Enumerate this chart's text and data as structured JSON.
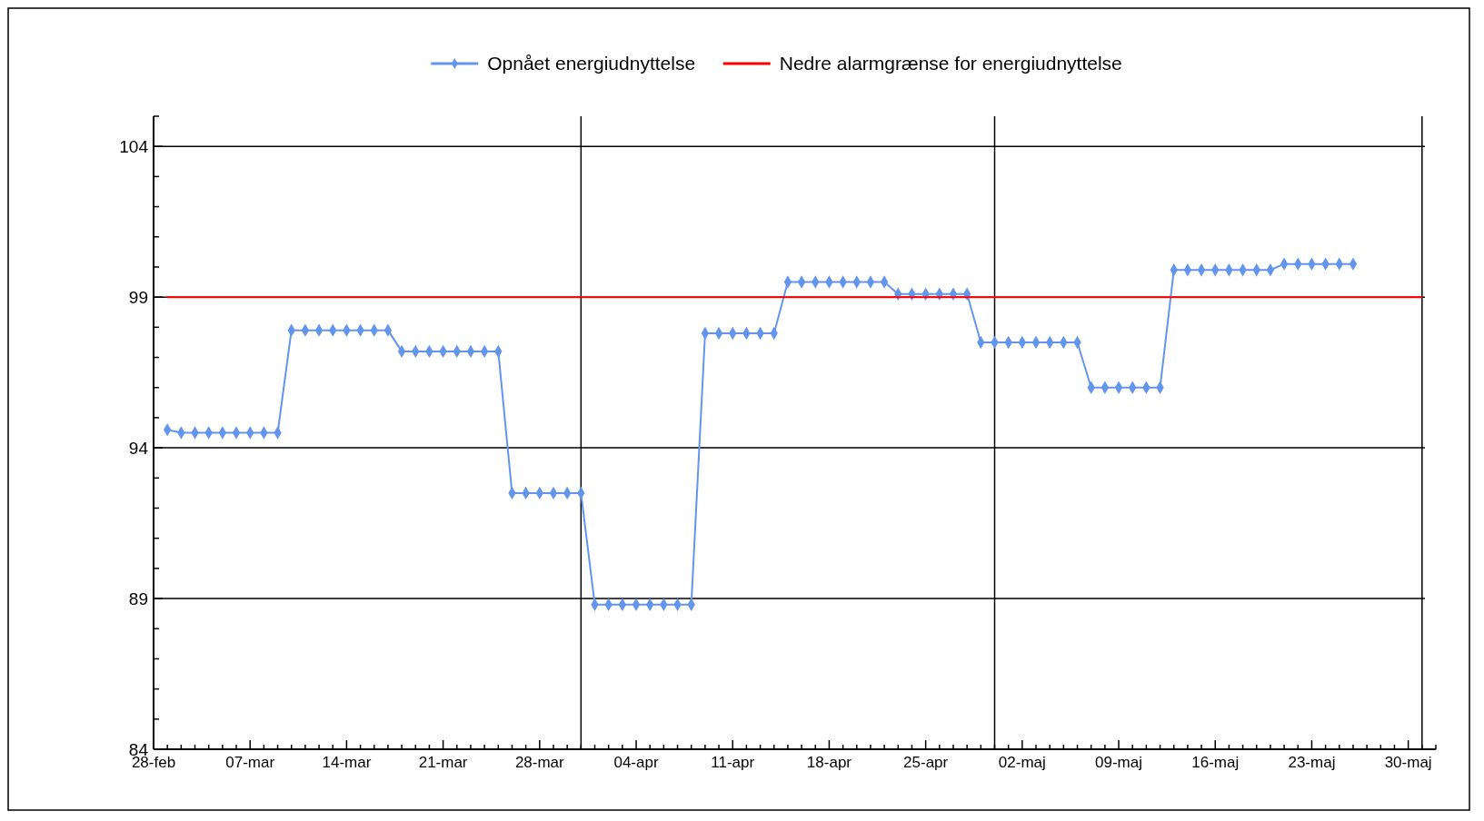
{
  "chart_data": {
    "type": "line",
    "x": [
      "--03-01",
      "--03-02",
      "--03-03",
      "--03-04",
      "--03-05",
      "--03-06",
      "--03-07",
      "--03-08",
      "--03-09",
      "--03-10",
      "--03-11",
      "--03-12",
      "--03-13",
      "--03-14",
      "--03-15",
      "--03-16",
      "--03-17",
      "--03-18",
      "--03-19",
      "--03-20",
      "--03-21",
      "--03-22",
      "--03-23",
      "--03-24",
      "--03-25",
      "--03-26",
      "--03-27",
      "--03-28",
      "--03-29",
      "--03-30",
      "--03-31",
      "--04-01",
      "--04-02",
      "--04-03",
      "--04-04",
      "--04-05",
      "--04-06",
      "--04-07",
      "--04-08",
      "--04-09",
      "--04-10",
      "--04-11",
      "--04-12",
      "--04-13",
      "--04-14",
      "--04-15",
      "--04-16",
      "--04-17",
      "--04-18",
      "--04-19",
      "--04-20",
      "--04-21",
      "--04-22",
      "--04-23",
      "--04-24",
      "--04-25",
      "--04-26",
      "--04-27",
      "--04-28",
      "--04-29",
      "--04-30",
      "--05-01",
      "--05-02",
      "--05-03",
      "--05-04",
      "--05-05",
      "--05-06",
      "--05-07",
      "--05-08",
      "--05-09",
      "--05-10",
      "--05-11",
      "--05-12",
      "--05-13",
      "--05-14",
      "--05-15",
      "--05-16",
      "--05-17",
      "--05-18",
      "--05-19",
      "--05-20",
      "--05-21",
      "--05-22",
      "--05-23",
      "--05-24",
      "--05-25",
      "--05-26"
    ],
    "series": [
      {
        "name": "Opnået energiudnyttelse",
        "color": "#6495ed",
        "marker": "diamond",
        "values": [
          94.6,
          94.5,
          94.5,
          94.5,
          94.5,
          94.5,
          94.5,
          94.5,
          94.5,
          97.9,
          97.9,
          97.9,
          97.9,
          97.9,
          97.9,
          97.9,
          97.9,
          97.2,
          97.2,
          97.2,
          97.2,
          97.2,
          97.2,
          97.2,
          97.2,
          92.5,
          92.5,
          92.5,
          92.5,
          92.5,
          92.5,
          88.8,
          88.8,
          88.8,
          88.8,
          88.8,
          88.8,
          88.8,
          88.8,
          97.8,
          97.8,
          97.8,
          97.8,
          97.8,
          97.8,
          99.5,
          99.5,
          99.5,
          99.5,
          99.5,
          99.5,
          99.5,
          99.5,
          99.1,
          99.1,
          99.1,
          99.1,
          99.1,
          99.1,
          97.5,
          97.5,
          97.5,
          97.5,
          97.5,
          97.5,
          97.5,
          97.5,
          96.0,
          96.0,
          96.0,
          96.0,
          96.0,
          96.0,
          99.9,
          99.9,
          99.9,
          99.9,
          99.9,
          99.9,
          99.9,
          99.9,
          100.1,
          100.1,
          100.1,
          100.1,
          100.1,
          100.1
        ]
      },
      {
        "name": "Nedre alarmgrænse for energiudnyttelse",
        "color": "#ff0000",
        "marker": "none",
        "x": [
          "--03-01",
          "--05-31"
        ],
        "values": [
          99,
          99
        ]
      }
    ],
    "xlim": [
      "--02-28",
      "--06-01"
    ],
    "xticks": [
      {
        "value": "--02-28",
        "label": "28-feb"
      },
      {
        "value": "--03-01",
        "label": null
      },
      {
        "value": "--03-02",
        "label": null
      },
      {
        "value": "--03-03",
        "label": null
      },
      {
        "value": "--03-04",
        "label": null
      },
      {
        "value": "--03-05",
        "label": null
      },
      {
        "value": "--03-06",
        "label": null
      },
      {
        "value": "--03-07",
        "label": "07-mar"
      },
      {
        "value": "--03-08",
        "label": null
      },
      {
        "value": "--03-09",
        "label": null
      },
      {
        "value": "--03-10",
        "label": null
      },
      {
        "value": "--03-11",
        "label": null
      },
      {
        "value": "--03-12",
        "label": null
      },
      {
        "value": "--03-13",
        "label": null
      },
      {
        "value": "--03-14",
        "label": "14-mar"
      },
      {
        "value": "--03-15",
        "label": null
      },
      {
        "value": "--03-16",
        "label": null
      },
      {
        "value": "--03-17",
        "label": null
      },
      {
        "value": "--03-18",
        "label": null
      },
      {
        "value": "--03-19",
        "label": null
      },
      {
        "value": "--03-20",
        "label": null
      },
      {
        "value": "--03-21",
        "label": "21-mar"
      },
      {
        "value": "--03-22",
        "label": null
      },
      {
        "value": "--03-23",
        "label": null
      },
      {
        "value": "--03-24",
        "label": null
      },
      {
        "value": "--03-25",
        "label": null
      },
      {
        "value": "--03-26",
        "label": null
      },
      {
        "value": "--03-27",
        "label": null
      },
      {
        "value": "--03-28",
        "label": "28-mar"
      },
      {
        "value": "--03-29",
        "label": null
      },
      {
        "value": "--03-30",
        "label": null
      },
      {
        "value": "--03-31",
        "label": null
      },
      {
        "value": "--04-01",
        "label": null
      },
      {
        "value": "--04-02",
        "label": null
      },
      {
        "value": "--04-03",
        "label": null
      },
      {
        "value": "--04-04",
        "label": "04-apr"
      },
      {
        "value": "--04-05",
        "label": null
      },
      {
        "value": "--04-06",
        "label": null
      },
      {
        "value": "--04-07",
        "label": null
      },
      {
        "value": "--04-08",
        "label": null
      },
      {
        "value": "--04-09",
        "label": null
      },
      {
        "value": "--04-10",
        "label": null
      },
      {
        "value": "--04-11",
        "label": "11-apr"
      },
      {
        "value": "--04-12",
        "label": null
      },
      {
        "value": "--04-13",
        "label": null
      },
      {
        "value": "--04-14",
        "label": null
      },
      {
        "value": "--04-15",
        "label": null
      },
      {
        "value": "--04-16",
        "label": null
      },
      {
        "value": "--04-17",
        "label": null
      },
      {
        "value": "--04-18",
        "label": "18-apr"
      },
      {
        "value": "--04-19",
        "label": null
      },
      {
        "value": "--04-20",
        "label": null
      },
      {
        "value": "--04-21",
        "label": null
      },
      {
        "value": "--04-22",
        "label": null
      },
      {
        "value": "--04-23",
        "label": null
      },
      {
        "value": "--04-24",
        "label": null
      },
      {
        "value": "--04-25",
        "label": "25-apr"
      },
      {
        "value": "--04-26",
        "label": null
      },
      {
        "value": "--04-27",
        "label": null
      },
      {
        "value": "--04-28",
        "label": null
      },
      {
        "value": "--04-29",
        "label": null
      },
      {
        "value": "--04-30",
        "label": null
      },
      {
        "value": "--05-01",
        "label": null
      },
      {
        "value": "--05-02",
        "label": "02-maj"
      },
      {
        "value": "--05-03",
        "label": null
      },
      {
        "value": "--05-04",
        "label": null
      },
      {
        "value": "--05-05",
        "label": null
      },
      {
        "value": "--05-06",
        "label": null
      },
      {
        "value": "--05-07",
        "label": null
      },
      {
        "value": "--05-08",
        "label": null
      },
      {
        "value": "--05-09",
        "label": "09-maj"
      },
      {
        "value": "--05-10",
        "label": null
      },
      {
        "value": "--05-11",
        "label": null
      },
      {
        "value": "--05-12",
        "label": null
      },
      {
        "value": "--05-13",
        "label": null
      },
      {
        "value": "--05-14",
        "label": null
      },
      {
        "value": "--05-15",
        "label": null
      },
      {
        "value": "--05-16",
        "label": "16-maj"
      },
      {
        "value": "--05-17",
        "label": null
      },
      {
        "value": "--05-18",
        "label": null
      },
      {
        "value": "--05-19",
        "label": null
      },
      {
        "value": "--05-20",
        "label": null
      },
      {
        "value": "--05-21",
        "label": null
      },
      {
        "value": "--05-22",
        "label": null
      },
      {
        "value": "--05-23",
        "label": "23-maj"
      },
      {
        "value": "--05-24",
        "label": null
      },
      {
        "value": "--05-25",
        "label": null
      },
      {
        "value": "--05-26",
        "label": null
      },
      {
        "value": "--05-27",
        "label": null
      },
      {
        "value": "--05-28",
        "label": null
      },
      {
        "value": "--05-29",
        "label": null
      },
      {
        "value": "--05-30",
        "label": "30-maj"
      },
      {
        "value": "--05-31",
        "label": null
      },
      {
        "value": "--06-01",
        "label": null
      }
    ],
    "ylim": [
      84,
      105
    ],
    "yticks": [
      84,
      {
        "value": 85,
        "label": null
      },
      {
        "value": 86,
        "label": null
      },
      {
        "value": 87,
        "label": null
      },
      {
        "value": 88,
        "label": null
      },
      89,
      {
        "value": 90,
        "label": null
      },
      {
        "value": 91,
        "label": null
      },
      {
        "value": 92,
        "label": null
      },
      {
        "value": 93,
        "label": null
      },
      94,
      {
        "value": 95,
        "label": null
      },
      {
        "value": 96,
        "label": null
      },
      {
        "value": 97,
        "label": null
      },
      {
        "value": 98,
        "label": null
      },
      99,
      {
        "value": 100,
        "label": null
      },
      {
        "value": 101,
        "label": null
      },
      {
        "value": 102,
        "label": null
      },
      {
        "value": 103,
        "label": null
      },
      104,
      {
        "value": 105,
        "label": null
      }
    ],
    "grid": "y",
    "ref_lines": [
      {
        "axis": "x",
        "value": "--03-31",
        "color": "#000000"
      },
      {
        "axis": "x",
        "value": "--04-30",
        "color": "#000000"
      },
      {
        "axis": "x",
        "value": "--05-31",
        "color": "#000000"
      }
    ],
    "legend": "top"
  }
}
